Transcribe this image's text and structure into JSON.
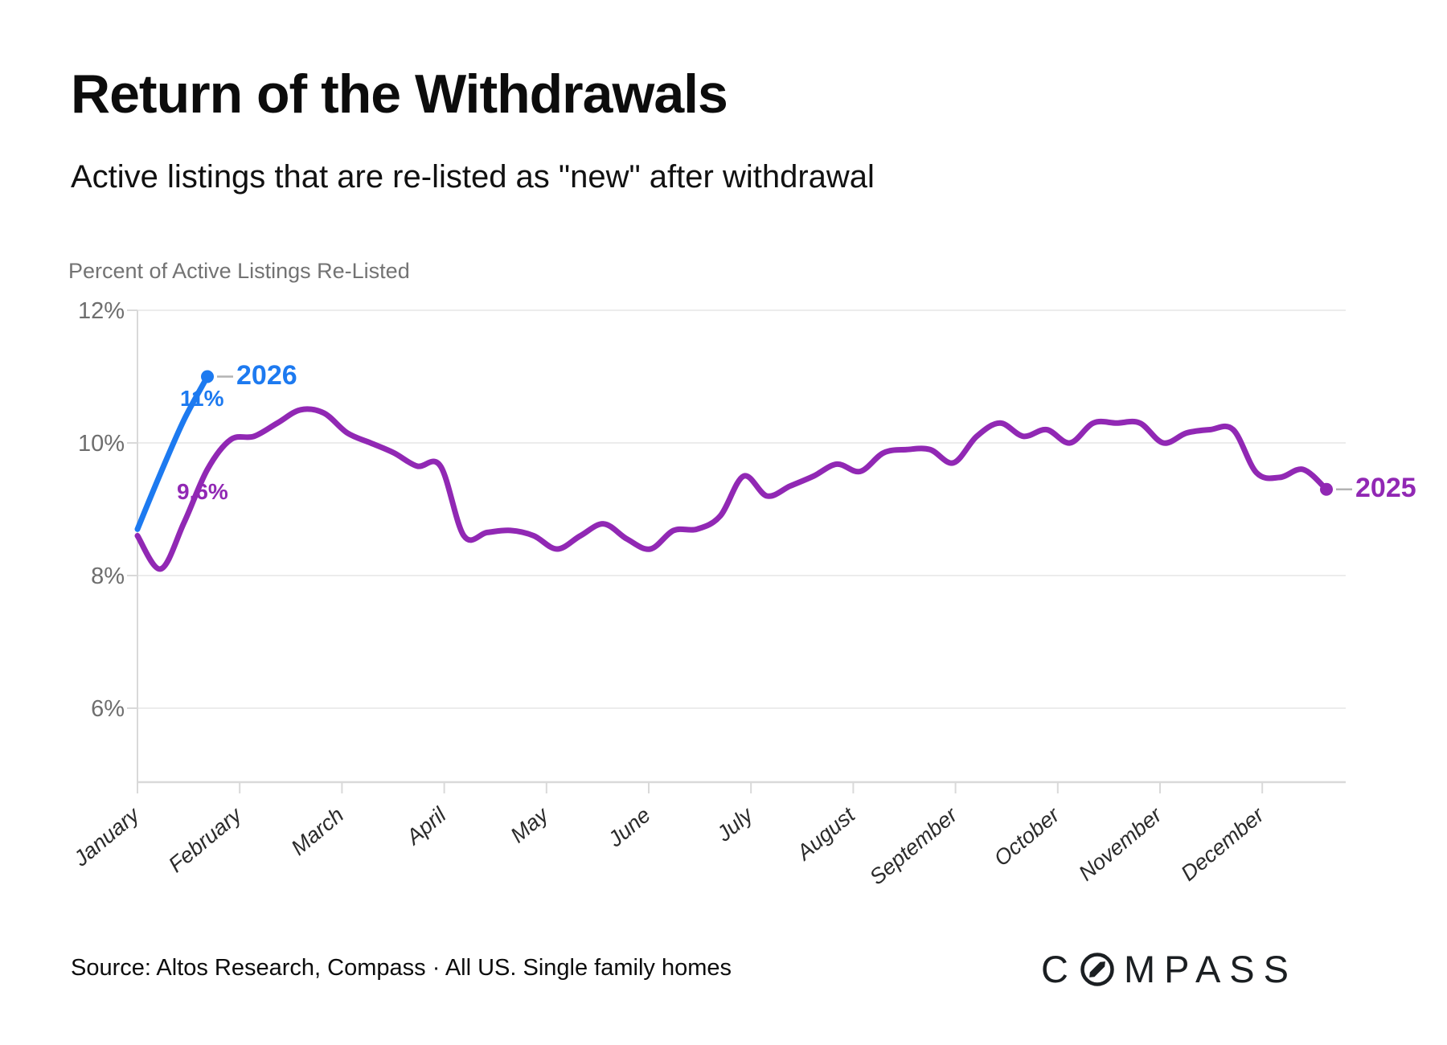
{
  "header": {
    "title": "Return of the Withdrawals",
    "subtitle": "Active listings that are re-listed as \"new\" after withdrawal"
  },
  "chart": {
    "y_axis_title": "Percent of Active Listings Re-Listed"
  },
  "chart_data": {
    "type": "line",
    "title": "Return of the Withdrawals",
    "x_unit": "weeks (Jan–Dec)",
    "categories_x": [
      "January",
      "February",
      "March",
      "April",
      "May",
      "June",
      "July",
      "August",
      "September",
      "October",
      "November",
      "December"
    ],
    "y_ticks": [
      {
        "label": "12%",
        "value": 12
      },
      {
        "label": "10%",
        "value": 10
      },
      {
        "label": "8%",
        "value": 8
      },
      {
        "label": "6%",
        "value": 6
      }
    ],
    "ylim": [
      4.9,
      12.4
    ],
    "grid": "horizontal-only",
    "series": [
      {
        "name": "2025",
        "color": "#9128b4",
        "end_dot": true,
        "values": [
          8.6,
          8.1,
          8.8,
          9.6,
          10.05,
          10.1,
          10.3,
          10.5,
          10.45,
          10.15,
          10.0,
          9.85,
          9.65,
          9.65,
          8.6,
          8.65,
          8.68,
          8.6,
          8.4,
          8.6,
          8.78,
          8.55,
          8.4,
          8.68,
          8.7,
          8.9,
          9.5,
          9.2,
          9.35,
          9.5,
          9.68,
          9.57,
          9.85,
          9.9,
          9.9,
          9.7,
          10.1,
          10.3,
          10.1,
          10.2,
          10.0,
          10.3,
          10.3,
          10.3,
          10.0,
          10.15,
          10.2,
          10.2,
          9.55,
          9.48,
          9.6,
          9.3
        ]
      },
      {
        "name": "2026",
        "color": "#1d7af0",
        "end_dot": true,
        "values": [
          8.7,
          9.55,
          10.35,
          11.0
        ]
      }
    ],
    "annotations": {
      "end_2026": "2026",
      "value_2026": "11%",
      "value_2025_jan": "9.6%",
      "end_2025": "2025"
    },
    "colors": {
      "gridline": "#ececec",
      "axis": "#d9d9d9",
      "tick_label": "#6e6e6e",
      "month_label": "#2b2b2b",
      "connector": "#b3b3b3"
    }
  },
  "footer": {
    "source": "Source: Altos Research, Compass · All US. Single family homes",
    "logo_prefix": "C",
    "logo_suffix": "MPASS"
  }
}
